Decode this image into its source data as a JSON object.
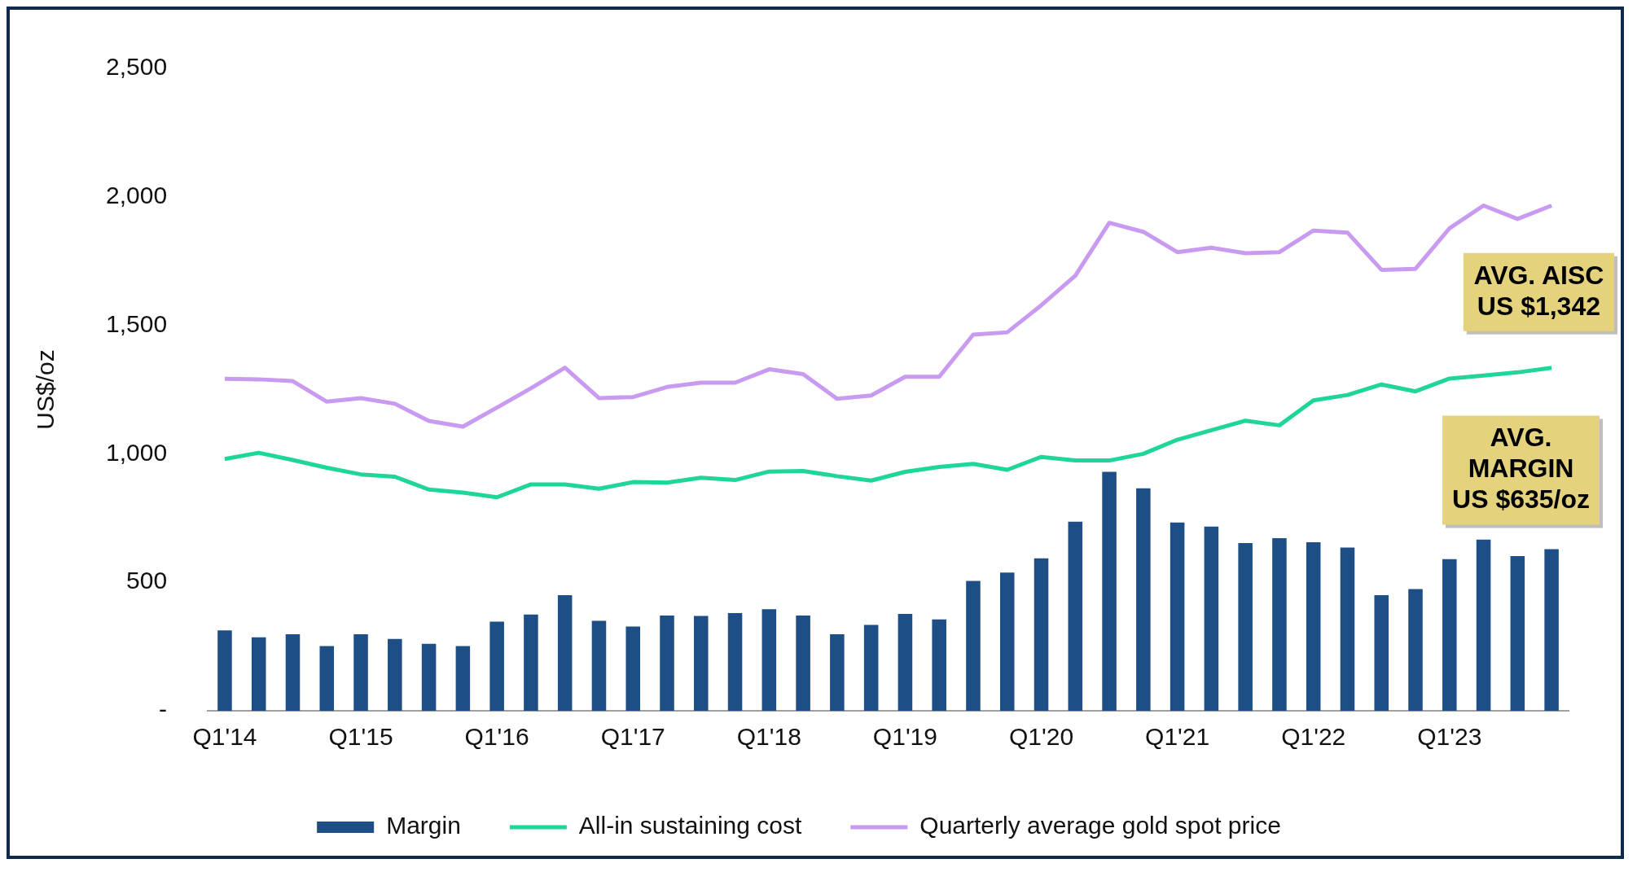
{
  "chart_data": {
    "type": "bar",
    "ylabel": "US$/oz",
    "categories": [
      "Q1'14",
      null,
      null,
      null,
      "Q1'15",
      null,
      null,
      null,
      "Q1'16",
      null,
      null,
      null,
      "Q1'17",
      null,
      null,
      null,
      "Q1'18",
      null,
      null,
      null,
      "Q1'19",
      null,
      null,
      null,
      "Q1'20",
      null,
      null,
      null,
      "Q1'21",
      null,
      null,
      null,
      "Q1'22",
      null,
      null,
      null,
      "Q1'23",
      null,
      null,
      null
    ],
    "series": [
      {
        "name": "Margin",
        "color": "#1d4f86",
        "values": [
          313,
          286,
          298,
          252,
          298,
          280,
          261,
          252,
          347,
          375,
          450,
          350,
          328,
          371,
          369,
          380,
          395,
          371,
          298,
          334,
          377,
          356,
          505,
          538,
          593,
          736,
          930,
          866,
          733,
          717,
          653,
          672,
          656,
          635,
          450,
          474,
          590,
          666,
          602,
          629
        ]
      },
      {
        "name": "All-in sustaining cost",
        "type": "line",
        "color": "#20d59a",
        "values": [
          980,
          1004,
          976,
          946,
          920,
          911,
          861,
          849,
          831,
          881,
          881,
          864,
          890,
          888,
          907,
          898,
          931,
          933,
          913,
          896,
          930,
          949,
          961,
          938,
          988,
          974,
          974,
          1000,
          1055,
          1092,
          1129,
          1111,
          1208,
          1229,
          1270,
          1243,
          1293,
          1305,
          1317,
          1335
        ]
      },
      {
        "name": "Quarterly average gold spot price",
        "type": "line",
        "color": "#c89af0",
        "values": [
          1292,
          1290,
          1283,
          1203,
          1217,
          1195,
          1128,
          1106,
          1180,
          1255,
          1335,
          1217,
          1221,
          1260,
          1277,
          1277,
          1329,
          1310,
          1214,
          1227,
          1300,
          1300,
          1464,
          1473,
          1578,
          1693,
          1899,
          1864,
          1785,
          1802,
          1781,
          1785,
          1869,
          1861,
          1716,
          1720,
          1878,
          1966,
          1914,
          1966
        ]
      }
    ],
    "ylim": [
      0,
      2500
    ],
    "yticks": [
      {
        "value": 0,
        "label": "-"
      },
      500,
      {
        "value": 1000,
        "label": "1,000"
      },
      {
        "value": 1500,
        "label": "1,500"
      },
      {
        "value": 2000,
        "label": "2,000"
      },
      {
        "value": 2500,
        "label": "2,500"
      }
    ],
    "grid": false,
    "legend": "bottom",
    "marker": "none",
    "line_style": "solid",
    "annotations": [
      "AVG. AISC\nUS $1,342",
      "AVG.\nMARGIN\nUS $635/oz"
    ]
  }
}
